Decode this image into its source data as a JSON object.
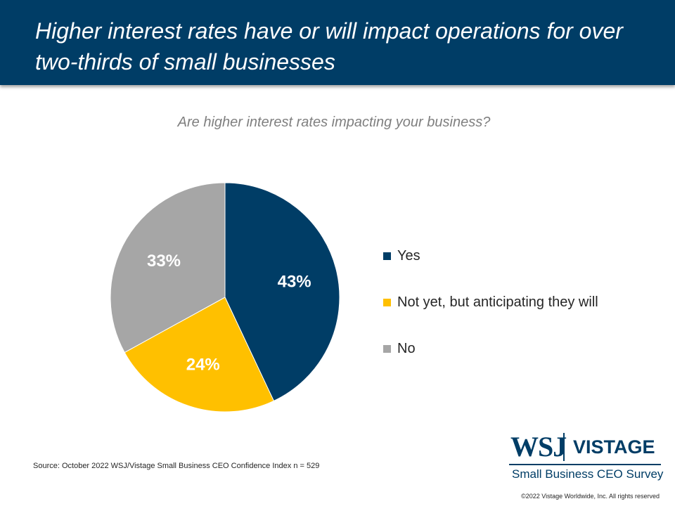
{
  "header": {
    "title": "Higher interest rates have or will impact operations for over two-thirds of small businesses"
  },
  "chart_data": {
    "type": "pie",
    "title": "Are higher interest rates impacting your business?",
    "slices": [
      {
        "label": "Yes",
        "value": 43,
        "display": "43%",
        "color": "#003d66"
      },
      {
        "label": "Not yet, but anticipating they will",
        "value": 24,
        "display": "24%",
        "color": "#ffc000"
      },
      {
        "label": "No",
        "value": 33,
        "display": "33%",
        "color": "#a6a6a6"
      }
    ],
    "legend_position": "right"
  },
  "footer": {
    "source": "Source: October 2022 WSJ/Vistage Small Business CEO Confidence Index n = 529",
    "copyright": "©2022 Vistage Worldwide, Inc. All rights reserved"
  },
  "logo": {
    "wsj": "WSJ",
    "vistage": "VISTAGE",
    "subtitle": "Small Business CEO Survey"
  }
}
